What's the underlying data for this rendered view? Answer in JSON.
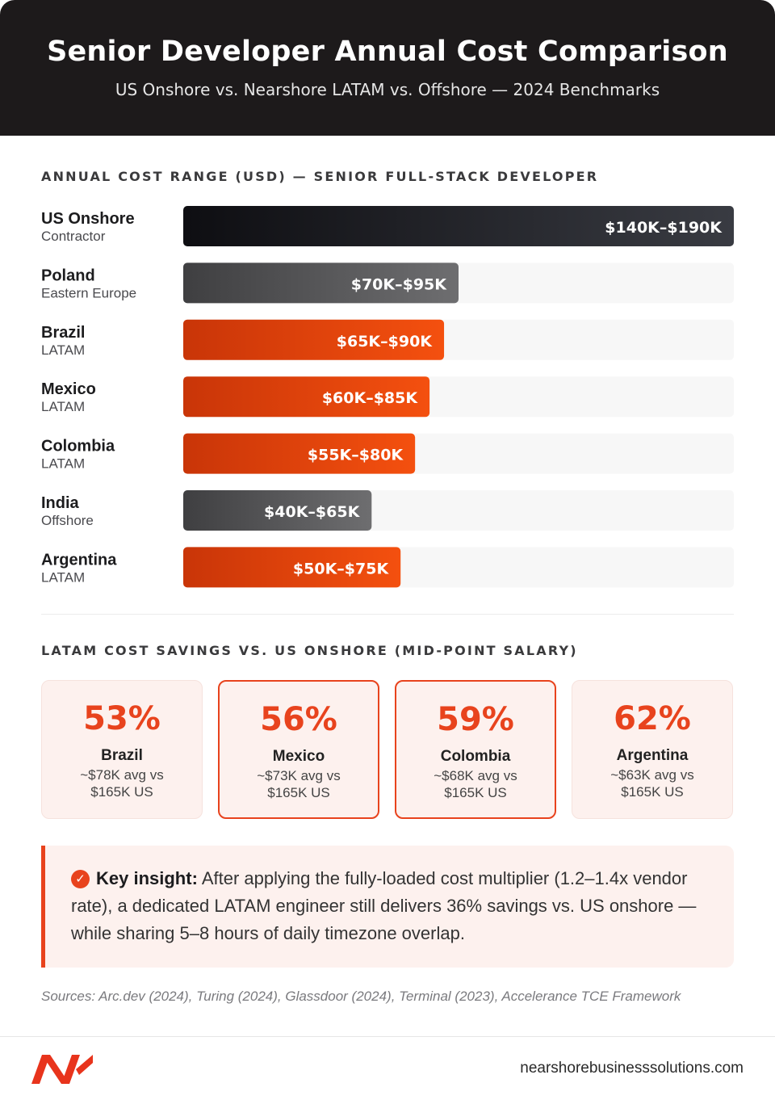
{
  "header": {
    "title": "Senior Developer Annual Cost Comparison",
    "subtitle": "US Onshore vs. Nearshore LATAM vs. Offshore — 2024 Benchmarks"
  },
  "chart_section_title": "ANNUAL COST RANGE (USD) — SENIOR FULL-STACK DEVELOPER",
  "chart_data": {
    "type": "bar",
    "orientation": "horizontal",
    "unit": "USD thousands",
    "categories": [
      "US Onshore",
      "Poland",
      "Brazil",
      "Mexico",
      "Colombia",
      "India",
      "Argentina"
    ],
    "subcategories": [
      "Contractor",
      "Eastern Europe",
      "LATAM",
      "LATAM",
      "LATAM",
      "Offshore",
      "LATAM"
    ],
    "ranges": [
      [
        140,
        190
      ],
      [
        70,
        95
      ],
      [
        65,
        90
      ],
      [
        60,
        85
      ],
      [
        55,
        80
      ],
      [
        40,
        65
      ],
      [
        50,
        75
      ]
    ],
    "values": [
      190,
      95,
      90,
      85,
      80,
      65,
      75
    ],
    "labels": [
      "$140K–$190K",
      "$70K–$95K",
      "$65K–$90K",
      "$60K–$85K",
      "$55K–$80K",
      "$40K–$65K",
      "$50K–$75K"
    ],
    "groups": [
      "onshore",
      "offshore",
      "latam",
      "latam",
      "latam",
      "offshore",
      "latam"
    ],
    "xlim": [
      0,
      190
    ],
    "colors": {
      "onshore": [
        "#0e0e12",
        "#393b42"
      ],
      "offshore": [
        "#3f3f41",
        "#6e6e70"
      ],
      "latam": [
        "#c93508",
        "#f4500f"
      ],
      "track": "#f7f7f7"
    }
  },
  "savings": {
    "title": "LATAM COST SAVINGS VS. US ONSHORE (MID-POINT SALARY)",
    "cards": [
      {
        "pct": "53%",
        "country": "Brazil",
        "line1": "~$78K avg vs",
        "line2": "$165K US"
      },
      {
        "pct": "56%",
        "country": "Mexico",
        "line1": "~$73K avg vs",
        "line2": "$165K US"
      },
      {
        "pct": "59%",
        "country": "Colombia",
        "line1": "~$68K avg vs",
        "line2": "$165K US"
      },
      {
        "pct": "62%",
        "country": "Argentina",
        "line1": "~$63K avg vs",
        "line2": "$165K US"
      }
    ]
  },
  "insight": {
    "label": "Key insight:",
    "text": "After applying the fully-loaded cost multiplier (1.2–1.4x vendor rate), a dedicated LATAM engineer still delivers 36% savings vs. US onshore — while sharing 5–8 hours of daily timezone overlap."
  },
  "sources": "Sources: Arc.dev (2024), Turing (2024), Glassdoor (2024), Terminal (2023), Accelerance TCE Framework",
  "footer": {
    "site": "nearshorebusinesssolutions.com",
    "logo_icon": "brand-logo-icon"
  },
  "icons": {
    "check": "check-circle-icon"
  }
}
